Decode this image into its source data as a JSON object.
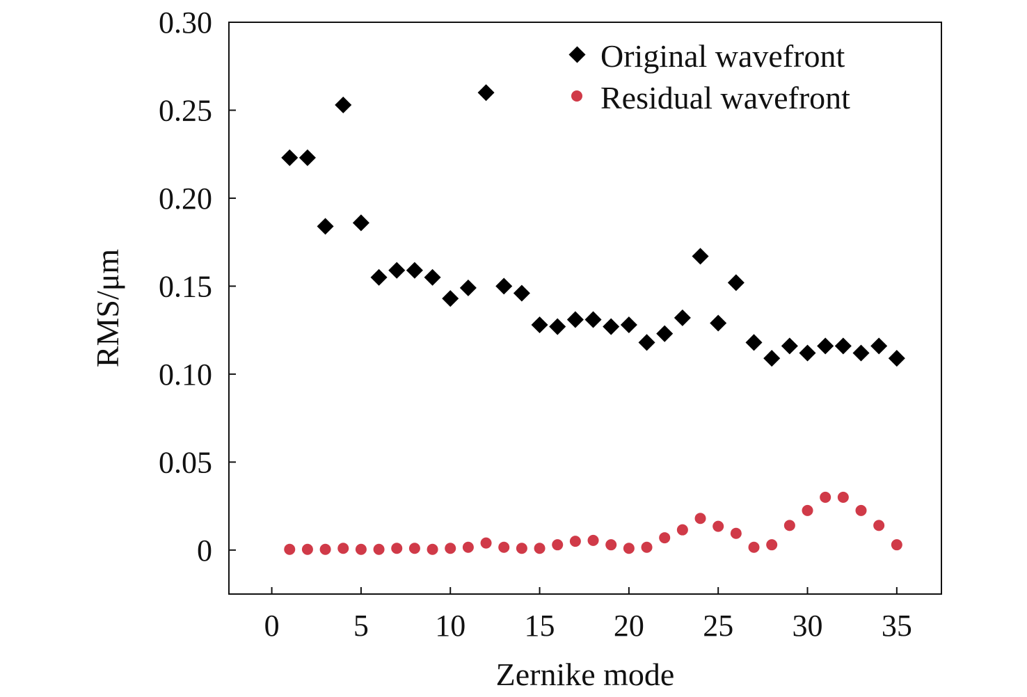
{
  "chart_data": {
    "type": "scatter",
    "title": "",
    "xlabel": "Zernike mode",
    "ylabel": "RMS/μm",
    "xlim": [
      -2.4,
      37.5
    ],
    "ylim": [
      -0.025,
      0.3
    ],
    "xticks": [
      0,
      5,
      10,
      15,
      20,
      25,
      30,
      35
    ],
    "xtick_labels": [
      "0",
      "5",
      "10",
      "15",
      "20",
      "25",
      "30",
      "35"
    ],
    "yticks": [
      0,
      0.05,
      0.1,
      0.15,
      0.2,
      0.25,
      0.3
    ],
    "ytick_labels": [
      "0",
      "0.05",
      "0.10",
      "0.15",
      "0.20",
      "0.25",
      "0.30"
    ],
    "grid": false,
    "legend_position": "top-right",
    "x": [
      1,
      2,
      3,
      4,
      5,
      6,
      7,
      8,
      9,
      10,
      11,
      12,
      13,
      14,
      15,
      16,
      17,
      18,
      19,
      20,
      21,
      22,
      23,
      24,
      25,
      26,
      27,
      28,
      29,
      30,
      31,
      32,
      33,
      34,
      35
    ],
    "series": [
      {
        "name": "Original wavefront",
        "marker": "diamond",
        "color": "#000000",
        "values": [
          0.223,
          0.223,
          0.184,
          0.253,
          0.186,
          0.155,
          0.159,
          0.159,
          0.155,
          0.143,
          0.149,
          0.26,
          0.15,
          0.146,
          0.128,
          0.127,
          0.131,
          0.131,
          0.127,
          0.128,
          0.118,
          0.123,
          0.132,
          0.167,
          0.129,
          0.152,
          0.118,
          0.109,
          0.116,
          0.112,
          0.116,
          0.116,
          0.112,
          0.116,
          0.109
        ]
      },
      {
        "name": "Residual wavefront",
        "marker": "circle",
        "color": "#d03a48",
        "values": [
          0.0004,
          0.0004,
          0.0004,
          0.001,
          0.0004,
          0.0004,
          0.001,
          0.001,
          0.0004,
          0.001,
          0.0016,
          0.004,
          0.0016,
          0.001,
          0.001,
          0.003,
          0.005,
          0.0055,
          0.003,
          0.001,
          0.0016,
          0.007,
          0.0115,
          0.018,
          0.0135,
          0.0095,
          0.0016,
          0.003,
          0.014,
          0.0225,
          0.03,
          0.03,
          0.0225,
          0.014,
          0.003
        ]
      }
    ]
  }
}
